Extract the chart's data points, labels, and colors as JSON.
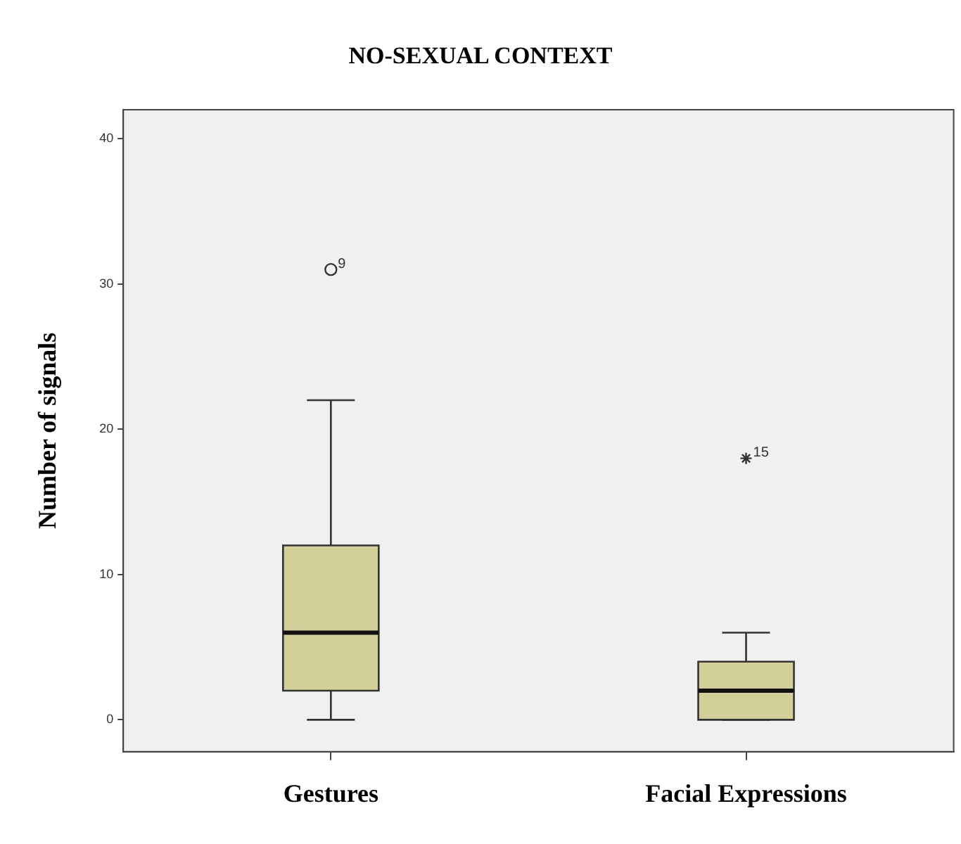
{
  "chart_data": {
    "type": "box",
    "title": "NO-SEXUAL CONTEXT",
    "ylabel": "Number of signals",
    "categories": [
      "Gestures",
      "Facial Expressions"
    ],
    "ylim": [
      -2.2,
      42
    ],
    "yticks": [
      0,
      10,
      20,
      30,
      40
    ],
    "series": [
      {
        "color": "#d3cf98",
        "boxes": [
          {
            "low": 0,
            "q1": 2,
            "median": 6,
            "q3": 12,
            "high": 22
          },
          {
            "low": 0,
            "q1": 0,
            "median": 2,
            "q3": 4,
            "high": 6
          }
        ]
      },
      {
        "type": "scatter",
        "marker": "circle",
        "color": "#333333",
        "x": [
          "Gestures"
        ],
        "values": [
          31
        ]
      },
      {
        "type": "scatter",
        "marker": "cross",
        "color": "#333333",
        "x": [
          "Facial Expressions"
        ],
        "values": [
          18
        ]
      }
    ],
    "annotations": [
      {
        "text": "9",
        "x": "Gestures",
        "y": 31
      },
      {
        "text": "15",
        "x": "Facial Expressions",
        "y": 18
      }
    ]
  }
}
